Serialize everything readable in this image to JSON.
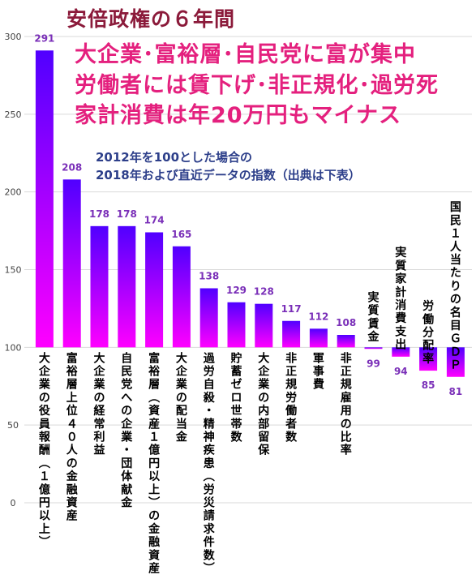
{
  "header": {
    "title": "安倍政権の６年間",
    "headlines": [
      "大企業･富裕層･自民党に富が集中",
      "労働者には賃下げ･非正規化･過労死",
      "家計消費は年20万円もマイナス"
    ],
    "note_lines": [
      "2012年を100とした場合の",
      "2018年および直近データの指数（出典は下表）"
    ]
  },
  "colors": {
    "bar_top": "#5000ff",
    "bar_bottom": "#ff00ff",
    "value_label": "#7a2fb8",
    "grid": "#d9d9d9",
    "tick": "#444444",
    "category_text": "#000000"
  },
  "chart_data": {
    "type": "bar",
    "baseline": 100,
    "ylim": [
      0,
      300
    ],
    "yticks": [
      0,
      50,
      100,
      150,
      200,
      250,
      300
    ],
    "grid": true,
    "categories": [
      "大企業の役員報酬（１億円以上）",
      "富裕層上位４０人の金融資産",
      "大企業の経常利益",
      "自民党への企業・団体献金",
      "富裕層（資産１億円以上）の金融資産",
      "大企業の配当金",
      "過労自殺・精神疾患（労災請求件数）",
      "貯蓄ゼロ世帯数",
      "大企業の内部留保",
      "非正規労働者数",
      "軍事費",
      "非正規雇用の比率",
      "実質賃金",
      "実質家計消費支出",
      "労働分配率",
      "国民１人当たりの名目ＧＤＰ"
    ],
    "values": [
      291,
      208,
      178,
      178,
      174,
      165,
      138,
      129,
      128,
      117,
      112,
      108,
      99,
      94,
      85,
      81
    ],
    "value_labels": [
      "291",
      "208",
      "178",
      "178",
      "174",
      "165",
      "138",
      "129",
      "128",
      "117",
      "112",
      "108",
      "99",
      "94",
      "85",
      "81"
    ],
    "ytick_labels": [
      "0",
      "50",
      "100",
      "150",
      "200",
      "250",
      "300"
    ]
  }
}
